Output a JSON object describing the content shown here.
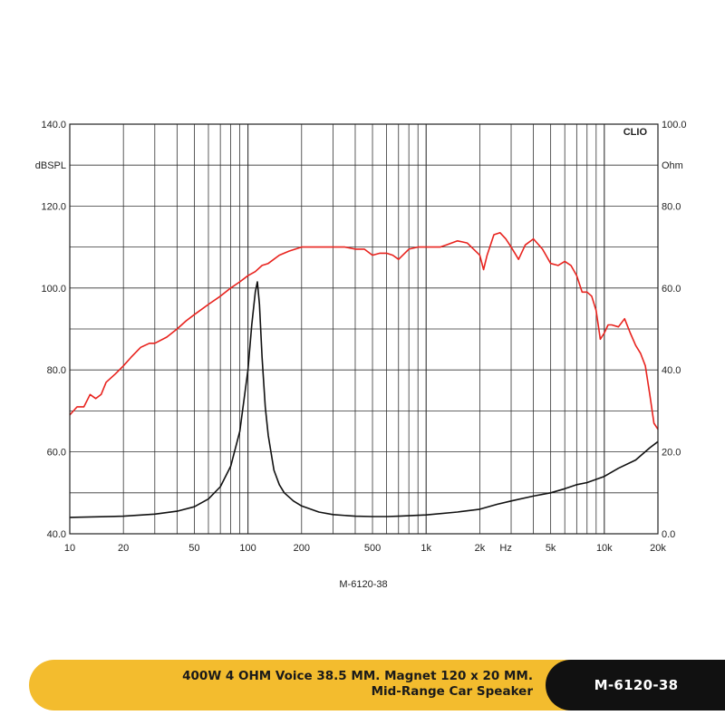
{
  "chart_data": {
    "type": "line",
    "brand": "CLIO",
    "caption": "M-6120-38",
    "left_axis": {
      "unit": "dBSPL",
      "range": [
        40,
        140
      ],
      "tick_values": [
        40,
        60,
        80,
        100,
        120,
        140
      ],
      "tick_labels": [
        "40.0",
        "60.0",
        "80.0",
        "100.0",
        "120.0",
        "140.0"
      ]
    },
    "right_axis": {
      "unit": "Ohm",
      "range": [
        0,
        100
      ],
      "tick_values": [
        0,
        20,
        40,
        60,
        80,
        100
      ],
      "tick_labels": [
        "0.0",
        "20.0",
        "40.0",
        "60.0",
        "80.0",
        "100.0"
      ]
    },
    "x_axis": {
      "scale": "log",
      "range": [
        10,
        20000
      ],
      "unit": "Hz",
      "tick_values": [
        10,
        20,
        50,
        100,
        200,
        500,
        1000,
        2000,
        5000,
        10000,
        20000
      ],
      "tick_labels": [
        "10",
        "20",
        "50",
        "100",
        "200",
        "500",
        "1k",
        "2k",
        "5k",
        "10k",
        "20k"
      ]
    },
    "grid": true,
    "series": [
      {
        "axis": "left",
        "color": "#e8231e",
        "x": [
          10,
          11,
          12,
          13,
          14,
          15,
          16,
          18,
          20,
          22,
          25,
          28,
          30,
          35,
          40,
          45,
          50,
          60,
          70,
          80,
          90,
          100,
          110,
          120,
          130,
          150,
          170,
          200,
          250,
          300,
          350,
          400,
          450,
          500,
          550,
          600,
          650,
          700,
          800,
          900,
          1000,
          1100,
          1200,
          1300,
          1500,
          1700,
          2000,
          2100,
          2200,
          2400,
          2600,
          2800,
          3000,
          3300,
          3600,
          4000,
          4500,
          5000,
          5500,
          6000,
          6500,
          7000,
          7500,
          8000,
          8500,
          9000,
          9500,
          10000,
          10500,
          11000,
          12000,
          13000,
          14000,
          15000,
          16000,
          17000,
          18000,
          19000,
          20000
        ],
        "y": [
          69,
          71,
          71,
          74,
          73,
          74,
          77,
          79,
          81,
          83,
          85.5,
          86.5,
          86.5,
          88,
          90,
          92,
          93.5,
          96,
          98,
          100,
          101.5,
          103,
          104,
          105.5,
          106,
          108,
          109,
          110,
          110,
          110,
          110,
          109.5,
          109.5,
          108,
          108.5,
          108.5,
          108,
          107,
          109.5,
          110,
          110,
          110,
          110,
          110.5,
          111.5,
          111,
          108,
          104.5,
          108,
          113,
          113.5,
          112,
          110,
          107,
          110.5,
          112,
          109.5,
          106,
          105.5,
          106.5,
          105.5,
          103,
          99,
          99,
          98,
          94.5,
          87.5,
          89,
          91,
          91,
          90.5,
          92.5,
          89,
          86,
          84,
          81,
          74,
          67,
          65.5
        ]
      },
      {
        "axis": "right",
        "color": "#111111",
        "x": [
          10,
          20,
          30,
          40,
          50,
          60,
          70,
          80,
          90,
          100,
          105,
          110,
          113,
          116,
          120,
          125,
          130,
          140,
          150,
          160,
          180,
          200,
          250,
          300,
          400,
          500,
          600,
          700,
          1000,
          1500,
          2000,
          2500,
          3000,
          4000,
          5000,
          6000,
          7000,
          8000,
          10000,
          12000,
          15000,
          18000,
          20000
        ],
        "y": [
          4,
          4.3,
          4.8,
          5.5,
          6.6,
          8.5,
          11.5,
          16.5,
          25,
          40,
          51,
          59,
          61.5,
          56,
          43,
          31,
          24,
          15.5,
          12,
          10,
          8,
          6.8,
          5.3,
          4.7,
          4.3,
          4.2,
          4.2,
          4.3,
          4.6,
          5.3,
          6,
          7.2,
          8,
          9.2,
          10,
          11,
          12,
          12.5,
          14,
          16,
          18,
          21,
          22.5
        ]
      }
    ]
  },
  "banner": {
    "line1": "400W 4 OHM Voice 38.5 MM. Magnet 120 x 20 MM.",
    "line2": "Mid-Range Car Speaker",
    "model": "M-6120-38",
    "yellow": "#f3bc2e",
    "black": "#111111"
  }
}
